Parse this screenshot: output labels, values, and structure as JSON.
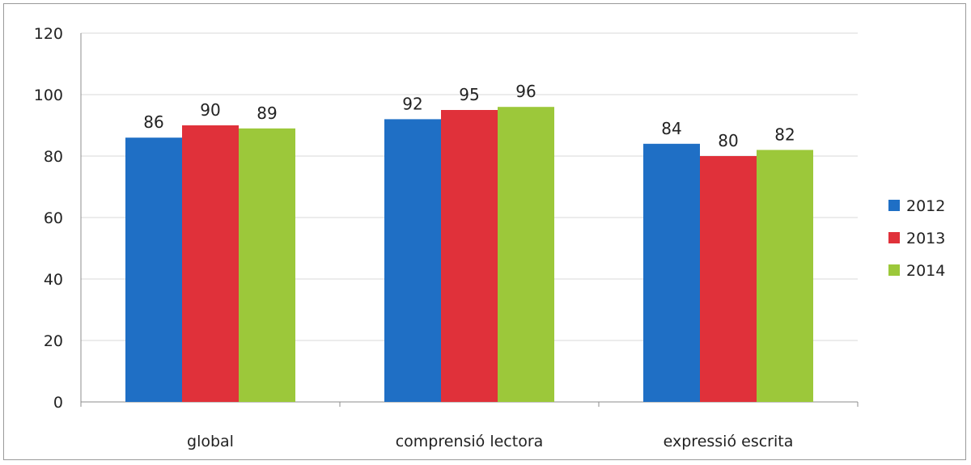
{
  "chart_data": {
    "type": "bar",
    "title": "",
    "xlabel": "",
    "ylabel": "",
    "categories": [
      "global",
      "comprensió lectora",
      "expressió escrita"
    ],
    "series": [
      {
        "name": "2012",
        "values": [
          86,
          92,
          84
        ],
        "color": "#1f6fc5"
      },
      {
        "name": "2013",
        "values": [
          90,
          95,
          80
        ],
        "color": "#e0313a"
      },
      {
        "name": "2014",
        "values": [
          89,
          96,
          82
        ],
        "color": "#9cc83a"
      }
    ],
    "ylim": [
      0,
      120
    ],
    "yticks": [
      0,
      20,
      40,
      60,
      80,
      100,
      120
    ],
    "grid": true,
    "data_labels": true,
    "legend_position": "right"
  }
}
